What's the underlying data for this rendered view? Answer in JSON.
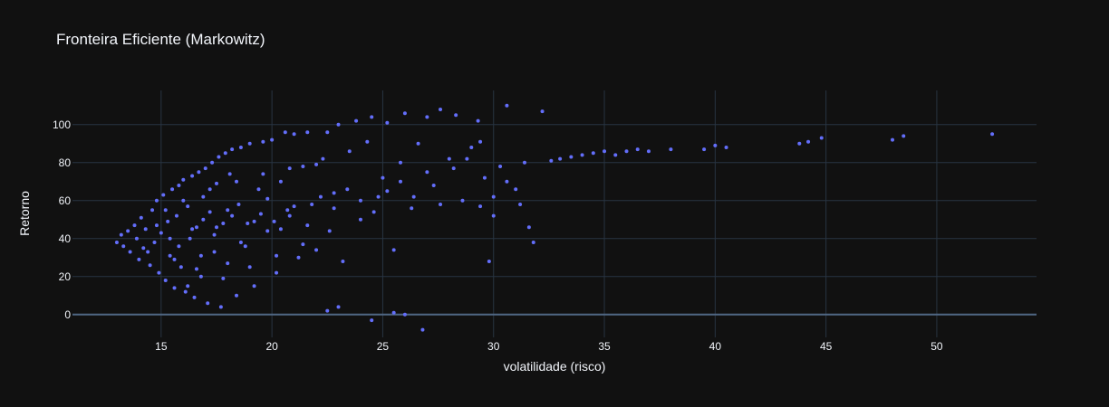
{
  "chart_data": {
    "type": "scatter",
    "title": "Fronteira Eficiente (Markowitz)",
    "xlabel": "volatilidade (risco)",
    "ylabel": "Retorno",
    "xlim": [
      11.0,
      54.5
    ],
    "ylim": [
      -12,
      118
    ],
    "x_ticks": [
      15,
      20,
      25,
      30,
      35,
      40,
      45,
      50
    ],
    "y_ticks": [
      0,
      20,
      40,
      60,
      80,
      100
    ],
    "grid": true,
    "legend": "none",
    "marker_color": "#636efa",
    "background": "#111111",
    "grid_color": "#283442",
    "zeroline_color": "#506784",
    "points": [
      [
        13.0,
        38
      ],
      [
        13.2,
        42
      ],
      [
        13.3,
        36
      ],
      [
        13.5,
        44
      ],
      [
        13.6,
        33
      ],
      [
        13.8,
        47
      ],
      [
        13.9,
        40
      ],
      [
        14.0,
        29
      ],
      [
        14.1,
        51
      ],
      [
        14.2,
        35
      ],
      [
        14.3,
        45
      ],
      [
        14.5,
        26
      ],
      [
        14.6,
        55
      ],
      [
        14.7,
        38
      ],
      [
        14.8,
        60
      ],
      [
        14.9,
        22
      ],
      [
        15.0,
        43
      ],
      [
        15.1,
        63
      ],
      [
        15.2,
        18
      ],
      [
        15.3,
        49
      ],
      [
        15.4,
        31
      ],
      [
        15.5,
        66
      ],
      [
        15.6,
        14
      ],
      [
        15.7,
        52
      ],
      [
        15.8,
        68
      ],
      [
        15.9,
        25
      ],
      [
        16.0,
        71
      ],
      [
        16.1,
        12
      ],
      [
        16.2,
        57
      ],
      [
        16.3,
        40
      ],
      [
        16.4,
        73
      ],
      [
        16.5,
        9
      ],
      [
        16.6,
        46
      ],
      [
        16.7,
        75
      ],
      [
        16.8,
        20
      ],
      [
        16.9,
        62
      ],
      [
        17.0,
        77
      ],
      [
        17.1,
        6
      ],
      [
        17.2,
        54
      ],
      [
        17.3,
        80
      ],
      [
        17.4,
        33
      ],
      [
        17.5,
        69
      ],
      [
        17.6,
        83
      ],
      [
        17.7,
        4
      ],
      [
        17.8,
        48
      ],
      [
        17.9,
        85
      ],
      [
        18.0,
        27
      ],
      [
        18.1,
        74
      ],
      [
        18.2,
        87
      ],
      [
        18.4,
        10
      ],
      [
        18.5,
        58
      ],
      [
        18.6,
        88
      ],
      [
        18.8,
        36
      ],
      [
        19.0,
        90
      ],
      [
        19.2,
        15
      ],
      [
        19.4,
        66
      ],
      [
        19.6,
        91
      ],
      [
        19.8,
        44
      ],
      [
        20.0,
        92
      ],
      [
        20.2,
        22
      ],
      [
        20.4,
        70
      ],
      [
        20.6,
        96
      ],
      [
        20.8,
        52
      ],
      [
        21.0,
        95
      ],
      [
        21.2,
        30
      ],
      [
        21.4,
        78
      ],
      [
        21.6,
        96
      ],
      [
        21.8,
        58
      ],
      [
        22.0,
        34
      ],
      [
        22.3,
        82
      ],
      [
        22.5,
        96
      ],
      [
        22.8,
        64
      ],
      [
        23.0,
        100
      ],
      [
        23.2,
        28
      ],
      [
        23.5,
        86
      ],
      [
        23.8,
        102
      ],
      [
        24.0,
        50
      ],
      [
        24.3,
        91
      ],
      [
        24.5,
        104
      ],
      [
        24.8,
        62
      ],
      [
        25.0,
        72
      ],
      [
        25.2,
        101
      ],
      [
        25.5,
        34
      ],
      [
        25.8,
        80
      ],
      [
        26.0,
        106
      ],
      [
        26.3,
        56
      ],
      [
        26.6,
        90
      ],
      [
        27.0,
        104
      ],
      [
        27.3,
        68
      ],
      [
        27.6,
        108
      ],
      [
        28.0,
        82
      ],
      [
        28.3,
        105
      ],
      [
        28.6,
        60
      ],
      [
        29.0,
        88
      ],
      [
        29.3,
        102
      ],
      [
        29.6,
        72
      ],
      [
        30.0,
        62
      ],
      [
        30.3,
        78
      ],
      [
        30.6,
        110
      ],
      [
        31.0,
        66
      ],
      [
        31.4,
        80
      ],
      [
        31.8,
        38
      ],
      [
        32.2,
        107
      ],
      [
        32.6,
        81
      ],
      [
        33.0,
        82
      ],
      [
        33.5,
        83
      ],
      [
        34.0,
        84
      ],
      [
        34.5,
        85
      ],
      [
        35.0,
        86
      ],
      [
        35.5,
        84
      ],
      [
        36.0,
        86
      ],
      [
        36.5,
        87
      ],
      [
        37.0,
        86
      ],
      [
        38.0,
        87
      ],
      [
        39.5,
        87
      ],
      [
        40.0,
        89
      ],
      [
        40.5,
        88
      ],
      [
        43.8,
        90
      ],
      [
        44.2,
        91
      ],
      [
        44.8,
        93
      ],
      [
        48.0,
        92
      ],
      [
        48.5,
        94
      ],
      [
        52.5,
        95
      ],
      [
        24.5,
        -3
      ],
      [
        25.5,
        1
      ],
      [
        26.0,
        0
      ],
      [
        26.8,
        -8
      ],
      [
        29.8,
        28
      ],
      [
        23.0,
        4
      ],
      [
        22.5,
        2
      ],
      [
        16.2,
        15
      ],
      [
        16.8,
        31
      ],
      [
        17.4,
        42
      ],
      [
        18.0,
        55
      ],
      [
        18.6,
        38
      ],
      [
        19.2,
        49
      ],
      [
        19.8,
        61
      ],
      [
        20.4,
        45
      ],
      [
        21.0,
        57
      ],
      [
        21.6,
        47
      ],
      [
        22.2,
        62
      ],
      [
        22.8,
        56
      ],
      [
        23.4,
        66
      ],
      [
        24.0,
        60
      ],
      [
        24.6,
        54
      ],
      [
        25.2,
        65
      ],
      [
        25.8,
        70
      ],
      [
        26.4,
        62
      ],
      [
        27.0,
        75
      ],
      [
        27.6,
        58
      ],
      [
        28.2,
        77
      ],
      [
        28.8,
        82
      ],
      [
        29.4,
        91
      ],
      [
        29.4,
        57
      ],
      [
        30.0,
        52
      ],
      [
        30.6,
        70
      ],
      [
        31.2,
        58
      ],
      [
        31.6,
        46
      ],
      [
        15.4,
        40
      ],
      [
        15.8,
        36
      ],
      [
        16.4,
        45
      ],
      [
        16.9,
        50
      ],
      [
        17.5,
        46
      ],
      [
        18.2,
        52
      ],
      [
        18.9,
        48
      ],
      [
        19.5,
        53
      ],
      [
        20.1,
        49
      ],
      [
        20.7,
        55
      ],
      [
        14.4,
        33
      ],
      [
        14.8,
        47
      ],
      [
        15.2,
        55
      ],
      [
        15.6,
        29
      ],
      [
        16.0,
        60
      ],
      [
        16.6,
        24
      ],
      [
        17.2,
        66
      ],
      [
        17.8,
        19
      ],
      [
        18.4,
        70
      ],
      [
        19.0,
        25
      ],
      [
        19.6,
        74
      ],
      [
        20.2,
        31
      ],
      [
        20.8,
        77
      ],
      [
        21.4,
        37
      ],
      [
        22.0,
        79
      ],
      [
        22.6,
        44
      ]
    ]
  }
}
